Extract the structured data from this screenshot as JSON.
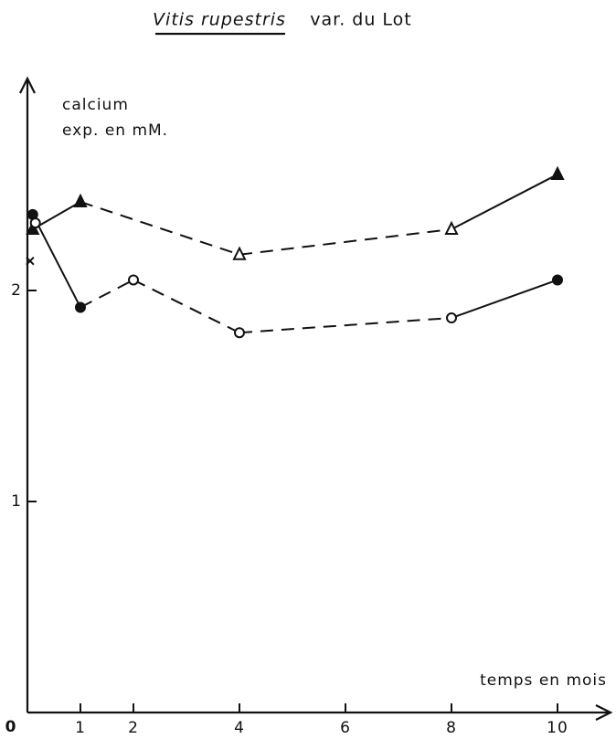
{
  "chart_data": {
    "type": "line",
    "title_species": "Vitis rupestris",
    "title_variety": "var. du Lot",
    "ylabel": [
      "calcium",
      "exp. en mM."
    ],
    "xlabel": "temps en mois",
    "origin_label": "0",
    "xlim": [
      0,
      11
    ],
    "ylim": [
      0,
      3
    ],
    "xticks": [
      1,
      2,
      4,
      6,
      8,
      10
    ],
    "yticks": [
      1,
      2
    ],
    "series": [
      {
        "marker": "triangle",
        "line": true,
        "color": "#111",
        "x": [
          0.1,
          1,
          4,
          8,
          10
        ],
        "values": [
          2.29,
          2.42,
          2.17,
          2.29,
          2.55
        ],
        "filled": [
          true,
          true,
          false,
          false,
          true
        ]
      },
      {
        "marker": "circle",
        "line": true,
        "color": "#111",
        "x": [
          0.1,
          1,
          2,
          4,
          8,
          10
        ],
        "values": [
          2.36,
          1.92,
          2.05,
          1.8,
          1.87,
          2.05
        ],
        "filled": [
          true,
          true,
          false,
          false,
          false,
          true
        ]
      },
      {
        "marker": "circle",
        "line": false,
        "color": "#111",
        "x": [
          0.15
        ],
        "values": [
          2.32
        ],
        "filled": [
          false
        ]
      },
      {
        "marker": "cross",
        "line": false,
        "color": "#111",
        "x": [
          0.05
        ],
        "values": [
          2.14
        ],
        "filled": [
          false
        ]
      }
    ]
  }
}
